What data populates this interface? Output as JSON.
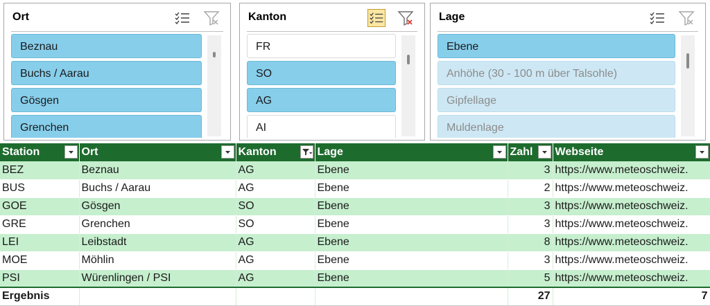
{
  "slicers": {
    "ort": {
      "title": "Ort",
      "items": [
        {
          "label": "Beznau",
          "state": "selected"
        },
        {
          "label": "Buchs / Aarau",
          "state": "selected"
        },
        {
          "label": "Gösgen",
          "state": "selected"
        },
        {
          "label": "Grenchen",
          "state": "selected"
        }
      ]
    },
    "kanton": {
      "title": "Kanton",
      "items": [
        {
          "label": "FR",
          "state": "unselected"
        },
        {
          "label": "SO",
          "state": "selected"
        },
        {
          "label": "AG",
          "state": "selected"
        },
        {
          "label": "AI",
          "state": "unselected"
        }
      ]
    },
    "lage": {
      "title": "Lage",
      "items": [
        {
          "label": "Ebene",
          "state": "selected"
        },
        {
          "label": "Anhöhe (30 - 100 m über Talsohle)",
          "state": "nodata"
        },
        {
          "label": "Gipfellage",
          "state": "nodata"
        },
        {
          "label": "Muldenlage",
          "state": "nodata"
        }
      ]
    }
  },
  "table": {
    "headers": [
      "Station",
      "Ort",
      "Kanton",
      "Lage",
      "Zahl",
      "Webseite"
    ],
    "rows": [
      [
        "BEZ",
        "Beznau",
        "AG",
        "Ebene",
        "3",
        "https://www.meteoschweiz."
      ],
      [
        "BUS",
        "Buchs / Aarau",
        "AG",
        "Ebene",
        "2",
        "https://www.meteoschweiz."
      ],
      [
        "GOE",
        "Gösgen",
        "SO",
        "Ebene",
        "3",
        "https://www.meteoschweiz."
      ],
      [
        "GRE",
        "Grenchen",
        "SO",
        "Ebene",
        "3",
        "https://www.meteoschweiz."
      ],
      [
        "LEI",
        "Leibstadt",
        "AG",
        "Ebene",
        "8",
        "https://www.meteoschweiz."
      ],
      [
        "MOE",
        "Möhlin",
        "AG",
        "Ebene",
        "3",
        "https://www.meteoschweiz."
      ],
      [
        "PSI",
        "Würenlingen / PSI",
        "AG",
        "Ebene",
        "5",
        "https://www.meteoschweiz."
      ]
    ],
    "total": {
      "label": "Ergebnis",
      "zahl": "27",
      "webseite": "7"
    }
  }
}
